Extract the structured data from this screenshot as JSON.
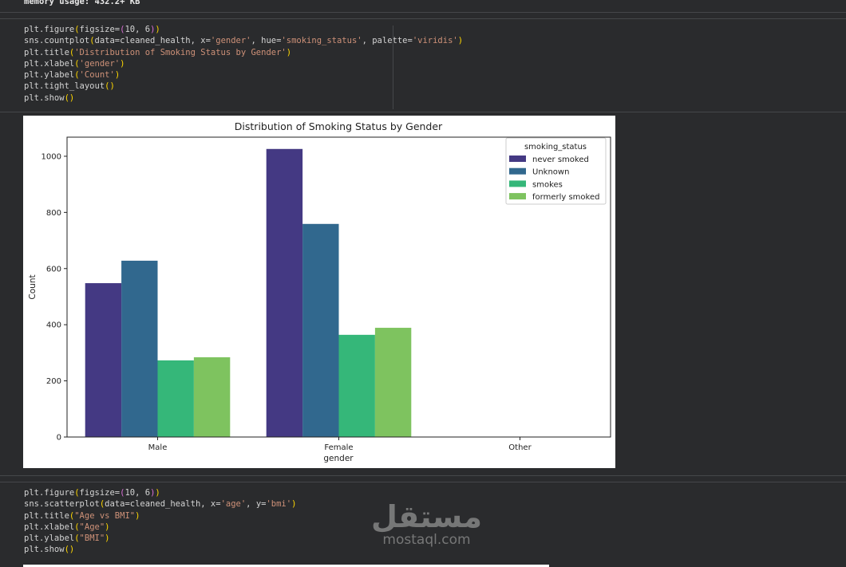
{
  "output": {
    "memory_usage": "memory usage: 432.2+ KB"
  },
  "cells": [
    {
      "lines": [
        [
          [
            "plt.figure",
            "n"
          ],
          [
            "(",
            "p1"
          ],
          [
            "figsize=",
            "n"
          ],
          [
            "(",
            "p2"
          ],
          [
            "10, 6",
            "n"
          ],
          [
            ")",
            "p2"
          ],
          [
            ")",
            "p1"
          ]
        ],
        [
          [
            "sns.countplot",
            "n"
          ],
          [
            "(",
            "p1"
          ],
          [
            "data=cleaned_health, x=",
            "n"
          ],
          [
            "'gender'",
            "str"
          ],
          [
            ", hue=",
            "n"
          ],
          [
            "'smoking_status'",
            "str"
          ],
          [
            ", palette=",
            "n"
          ],
          [
            "'viridis'",
            "str"
          ],
          [
            ")",
            "p1"
          ]
        ],
        [
          [
            "plt.title",
            "n"
          ],
          [
            "(",
            "p1"
          ],
          [
            "'Distribution of Smoking Status by Gender'",
            "str"
          ],
          [
            ")",
            "p1"
          ]
        ],
        [
          [
            "plt.xlabel",
            "n"
          ],
          [
            "(",
            "p1"
          ],
          [
            "'gender'",
            "str"
          ],
          [
            ")",
            "p1"
          ]
        ],
        [
          [
            "plt.ylabel",
            "n"
          ],
          [
            "(",
            "p1"
          ],
          [
            "'Count'",
            "str"
          ],
          [
            ")",
            "p1"
          ]
        ],
        [
          [
            "plt.tight_layout",
            "n"
          ],
          [
            "()",
            "p1"
          ]
        ],
        [
          [
            "plt.show",
            "n"
          ],
          [
            "()",
            "p1"
          ]
        ]
      ]
    },
    {
      "lines": [
        [
          [
            "plt.figure",
            "n"
          ],
          [
            "(",
            "p1"
          ],
          [
            "figsize=",
            "n"
          ],
          [
            "(",
            "p2"
          ],
          [
            "10, 6",
            "n"
          ],
          [
            ")",
            "p2"
          ],
          [
            ")",
            "p1"
          ]
        ],
        [
          [
            "sns.scatterplot",
            "n"
          ],
          [
            "(",
            "p1"
          ],
          [
            "data=cleaned_health, x=",
            "n"
          ],
          [
            "'age'",
            "str"
          ],
          [
            ", y=",
            "n"
          ],
          [
            "'bmi'",
            "str"
          ],
          [
            ")",
            "p1"
          ]
        ],
        [
          [
            "plt.title",
            "n"
          ],
          [
            "(",
            "p1"
          ],
          [
            "\"Age vs BMI\"",
            "str"
          ],
          [
            ")",
            "p1"
          ]
        ],
        [
          [
            "plt.xlabel",
            "n"
          ],
          [
            "(",
            "p1"
          ],
          [
            "\"Age\"",
            "str"
          ],
          [
            ")",
            "p1"
          ]
        ],
        [
          [
            "plt.ylabel",
            "n"
          ],
          [
            "(",
            "p1"
          ],
          [
            "\"BMI\"",
            "str"
          ],
          [
            ")",
            "p1"
          ]
        ],
        [
          [
            "plt.show",
            "n"
          ],
          [
            "()",
            "p1"
          ]
        ]
      ]
    }
  ],
  "chart_data": {
    "type": "bar",
    "title": "Distribution of Smoking Status by Gender",
    "xlabel": "gender",
    "ylabel": "Count",
    "categories": [
      "Male",
      "Female",
      "Other"
    ],
    "series": [
      {
        "name": "never smoked",
        "color": "#443983",
        "values": [
          548,
          1026,
          0
        ]
      },
      {
        "name": "Unknown",
        "color": "#31688e",
        "values": [
          628,
          759,
          0
        ]
      },
      {
        "name": "smokes",
        "color": "#35b779",
        "values": [
          273,
          364,
          0
        ]
      },
      {
        "name": "formerly smoked",
        "color": "#7ec35f",
        "values": [
          284,
          389,
          1
        ]
      }
    ],
    "ylim": [
      0,
      1068
    ],
    "yticks": [
      0,
      200,
      400,
      600,
      800,
      1000
    ],
    "legend_title": "smoking_status",
    "legend_position": "top-right",
    "grid": false
  },
  "watermark": {
    "arabic": "مستقل",
    "latin": "mostaql.com"
  }
}
